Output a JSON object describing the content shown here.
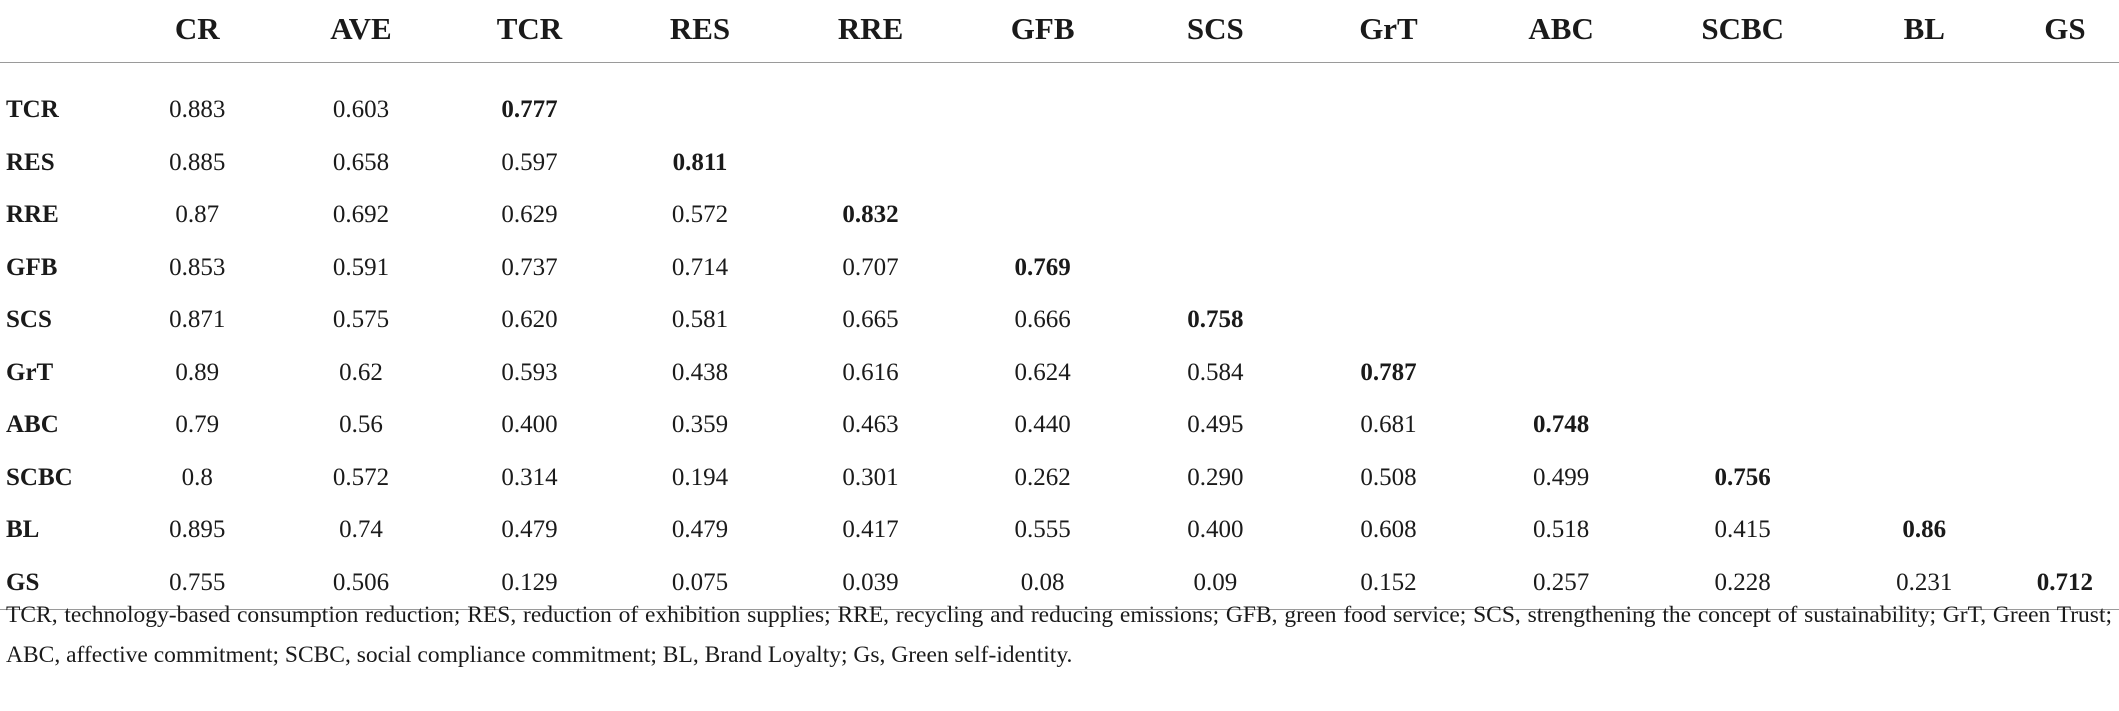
{
  "columns": [
    "",
    "CR",
    "AVE",
    "TCR",
    "RES",
    "RRE",
    "GFB",
    "SCS",
    "GrT",
    "ABC",
    "SCBC",
    "BL",
    "GS"
  ],
  "rows": [
    {
      "label": "TCR",
      "cells": [
        "0.883",
        "0.603",
        "0.777",
        "",
        "",
        "",
        "",
        "",
        "",
        "",
        "",
        ""
      ],
      "diag": 2
    },
    {
      "label": "RES",
      "cells": [
        "0.885",
        "0.658",
        "0.597",
        "0.811",
        "",
        "",
        "",
        "",
        "",
        "",
        "",
        ""
      ],
      "diag": 3
    },
    {
      "label": "RRE",
      "cells": [
        "0.87",
        "0.692",
        "0.629",
        "0.572",
        "0.832",
        "",
        "",
        "",
        "",
        "",
        "",
        ""
      ],
      "diag": 4
    },
    {
      "label": "GFB",
      "cells": [
        "0.853",
        "0.591",
        "0.737",
        "0.714",
        "0.707",
        "0.769",
        "",
        "",
        "",
        "",
        "",
        ""
      ],
      "diag": 5
    },
    {
      "label": "SCS",
      "cells": [
        "0.871",
        "0.575",
        "0.620",
        "0.581",
        "0.665",
        "0.666",
        "0.758",
        "",
        "",
        "",
        "",
        ""
      ],
      "diag": 6
    },
    {
      "label": "GrT",
      "cells": [
        "0.89",
        "0.62",
        "0.593",
        "0.438",
        "0.616",
        "0.624",
        "0.584",
        "0.787",
        "",
        "",
        "",
        ""
      ],
      "diag": 7
    },
    {
      "label": "ABC",
      "cells": [
        "0.79",
        "0.56",
        "0.400",
        "0.359",
        "0.463",
        "0.440",
        "0.495",
        "0.681",
        "0.748",
        "",
        "",
        ""
      ],
      "diag": 8
    },
    {
      "label": "SCBC",
      "cells": [
        "0.8",
        "0.572",
        "0.314",
        "0.194",
        "0.301",
        "0.262",
        "0.290",
        "0.508",
        "0.499",
        "0.756",
        "",
        ""
      ],
      "diag": 9
    },
    {
      "label": "BL",
      "cells": [
        "0.895",
        "0.74",
        "0.479",
        "0.479",
        "0.417",
        "0.555",
        "0.400",
        "0.608",
        "0.518",
        "0.415",
        "0.86",
        ""
      ],
      "diag": 10
    },
    {
      "label": "GS",
      "cells": [
        "0.755",
        "0.506",
        "0.129",
        "0.075",
        "0.039",
        "0.08",
        "0.09",
        "0.152",
        "0.257",
        "0.228",
        "0.231",
        "0.712"
      ],
      "diag": 11
    }
  ],
  "footnote": "TCR, technology-based consumption reduction; RES, reduction of exhibition supplies; RRE, recycling and reducing emissions; GFB, green food service; SCS, strengthening the concept of sustainability; GrT, Green Trust; ABC, affective commitment; SCBC, social compliance commitment; BL, Brand Loyalty; Gs, Green self-identity."
}
